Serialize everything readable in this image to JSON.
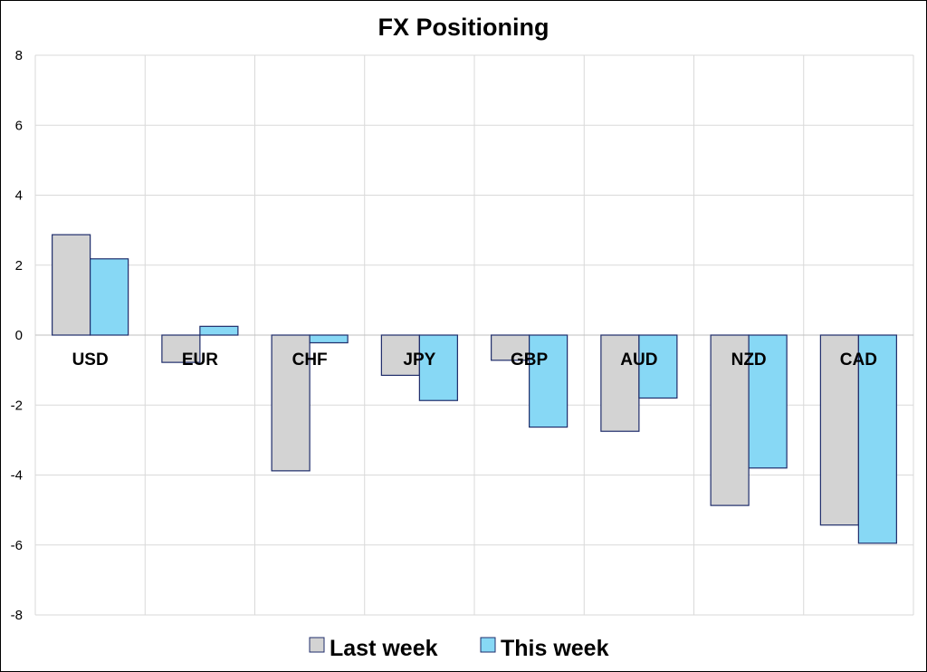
{
  "chart_data": {
    "type": "bar",
    "title": "FX Positioning",
    "xlabel": "",
    "ylabel": "",
    "categories": [
      "USD",
      "EUR",
      "CHF",
      "JPY",
      "GBP",
      "AUD",
      "NZD",
      "CAD"
    ],
    "series": [
      {
        "name": "Last week",
        "color": "#d3d3d3",
        "values": [
          2.87,
          -0.78,
          -3.88,
          -1.15,
          -0.72,
          -2.75,
          -4.87,
          -5.43
        ]
      },
      {
        "name": "This week",
        "color": "#87d8f5",
        "values": [
          2.18,
          0.25,
          -0.22,
          -1.87,
          -2.63,
          -1.8,
          -3.8,
          -5.95
        ]
      }
    ],
    "ylim": [
      -8,
      8
    ],
    "yticks": [
      8,
      6,
      4,
      2,
      0,
      -2,
      -4,
      -6,
      -8
    ],
    "grid": true,
    "legend_position": "bottom",
    "bar_outline_color": "#1f2d6b"
  }
}
